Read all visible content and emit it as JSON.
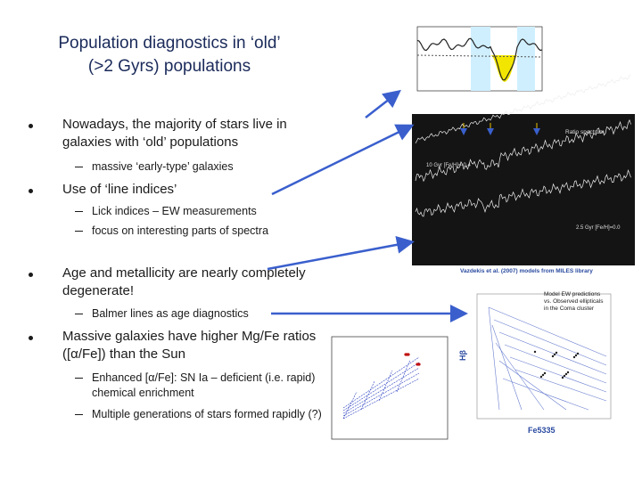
{
  "title": {
    "lines": [
      "Population diagnostics in ‘old’",
      "(>2 Gyrs) populations"
    ]
  },
  "bullets": [
    {
      "text": "Nowadays, the majority of stars live in galaxies with ‘old’ populations",
      "subs": [
        "massive ‘early-type’ galaxies"
      ]
    },
    {
      "text": "Use of ‘line indices’",
      "subs": [
        "Lick indices – EW measurements",
        "focus on interesting parts of spectra"
      ]
    },
    {
      "text": "Age and metallicity are nearly completely degenerate!",
      "subs": [
        "Balmer lines as age diagnostics"
      ]
    },
    {
      "text": "Massive galaxies have higher Mg/Fe ratios ([α/Fe]) than the Sun",
      "subs": [
        "Enhanced [α/Fe]: SN Ia – deficient (i.e. rapid) chemical enrichment",
        "Multiple generations of stars formed rapidly (?)"
      ]
    }
  ],
  "figures": {
    "spectrum": {
      "labels": [
        "Ratio spectrum",
        "10 Gyr [Fe/H]=-0.4",
        "2.5 Gyr [Fe/H]=0.0"
      ],
      "caption": "Vazdekis et al. (2007) models from MILES library"
    },
    "model_grid": {
      "note": "Model EW predictions vs. Observed ellipticals in the Coma cluster",
      "x_label": "Fe5335",
      "y_label": "Hβ"
    }
  }
}
